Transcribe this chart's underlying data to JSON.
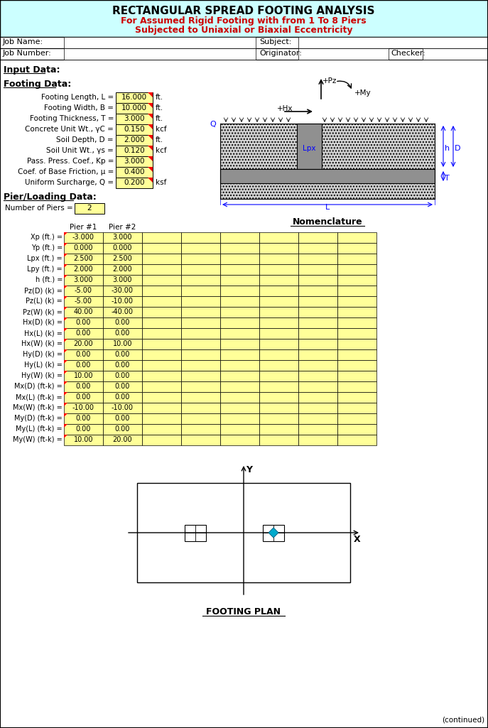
{
  "title": "RECTANGULAR SPREAD FOOTING ANALYSIS",
  "subtitle1": "For Assumed Rigid Footing with from 1 To 8 Piers",
  "subtitle2": "Subjected to Uniaxial or Biaxial Eccentricity",
  "header_bg": "#ccffff",
  "subtitle_color": "#cc0000",
  "footing_params": [
    [
      "Footing Length, L =",
      "16.000",
      "ft."
    ],
    [
      "Footing Width, B =",
      "10.000",
      "ft."
    ],
    [
      "Footing Thickness, T =",
      "3.000",
      "ft."
    ],
    [
      "Concrete Unit Wt., γC =",
      "0.150",
      "kcf"
    ],
    [
      "Soil Depth, D =",
      "2.000",
      "ft."
    ],
    [
      "Soil Unit Wt., γs =",
      "0.120",
      "kcf"
    ],
    [
      "Pass. Press. Coef., Kp =",
      "3.000",
      ""
    ],
    [
      "Coef. of Base Friction, μ =",
      "0.400",
      ""
    ],
    [
      "Uniform Surcharge, Q =",
      "0.200",
      "ksf"
    ]
  ],
  "num_piers": "2",
  "pier_rows": [
    [
      "Xp (ft.) =",
      "-3.000",
      "3.000"
    ],
    [
      "Yp (ft.) =",
      "0.000",
      "0.000"
    ],
    [
      "Lpx (ft.) =",
      "2.500",
      "2.500"
    ],
    [
      "Lpy (ft.) =",
      "2.000",
      "2.000"
    ],
    [
      "h (ft.) =",
      "3.000",
      "3.000"
    ],
    [
      "Pz(D) (k) =",
      "-5.00",
      "-30.00"
    ],
    [
      "Pz(L) (k) =",
      "-5.00",
      "-10.00"
    ],
    [
      "Pz(W) (k) =",
      "40.00",
      "-40.00"
    ],
    [
      "Hx(D) (k) =",
      "0.00",
      "0.00"
    ],
    [
      "Hx(L) (k) =",
      "0.00",
      "0.00"
    ],
    [
      "Hx(W) (k) =",
      "20.00",
      "10.00"
    ],
    [
      "Hy(D) (k) =",
      "0.00",
      "0.00"
    ],
    [
      "Hy(L) (k) =",
      "0.00",
      "0.00"
    ],
    [
      "Hy(W) (k) =",
      "10.00",
      "0.00"
    ],
    [
      "Mx(D) (ft-k) =",
      "0.00",
      "0.00"
    ],
    [
      "Mx(L) (ft-k) =",
      "0.00",
      "0.00"
    ],
    [
      "Mx(W) (ft-k) =",
      "-10.00",
      "-10.00"
    ],
    [
      "My(D) (ft-k) =",
      "0.00",
      "0.00"
    ],
    [
      "My(L) (ft-k) =",
      "0.00",
      "0.00"
    ],
    [
      "My(W) (ft-k) =",
      "10.00",
      "20.00"
    ]
  ],
  "yellow": "#ffff99",
  "footing_plan_label": "FOOTING PLAN",
  "continued_text": "(continued)"
}
